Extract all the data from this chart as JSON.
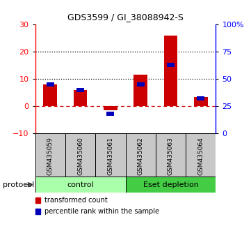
{
  "title": "GDS3599 / GI_38088942-S",
  "samples": [
    "GSM435059",
    "GSM435060",
    "GSM435061",
    "GSM435062",
    "GSM435063",
    "GSM435064"
  ],
  "red_values": [
    8.0,
    6.0,
    -1.5,
    11.5,
    26.0,
    3.5
  ],
  "blue_values_pct": [
    45,
    40,
    18,
    45,
    63,
    32
  ],
  "left_ylim": [
    -10,
    30
  ],
  "left_yticks": [
    -10,
    0,
    10,
    20,
    30
  ],
  "right_ylim": [
    0,
    100
  ],
  "right_yticks": [
    0,
    25,
    50,
    75,
    100
  ],
  "right_yticklabels": [
    "0",
    "25",
    "50",
    "75",
    "100%"
  ],
  "red_color": "#CC0000",
  "blue_color": "#0000BB",
  "bg_color": "#FFFFFF",
  "sample_bg_color": "#C8C8C8",
  "protocol_control_color": "#AAFFAA",
  "protocol_eset_color": "#44CC44",
  "protocol_groups": [
    {
      "label": "control",
      "indices": [
        0,
        1,
        2
      ],
      "color": "#AAFFAA"
    },
    {
      "label": "Eset depletion",
      "indices": [
        3,
        4,
        5
      ],
      "color": "#44CC44"
    }
  ],
  "legend_items": [
    {
      "color": "#CC0000",
      "label": "transformed count"
    },
    {
      "color": "#0000BB",
      "label": "percentile rank within the sample"
    }
  ],
  "bar_width": 0.45,
  "protocol_label": "protocol"
}
